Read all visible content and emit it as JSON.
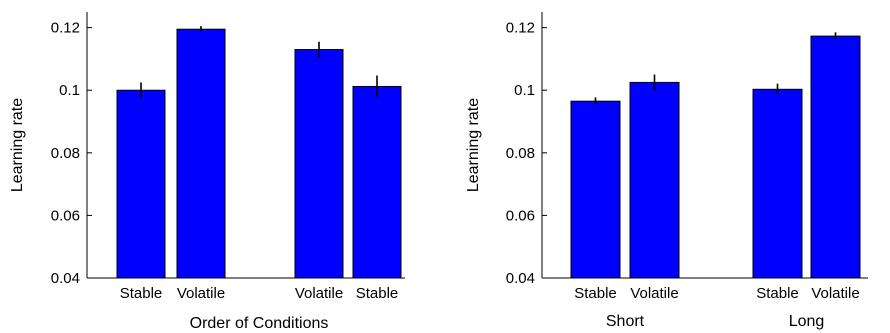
{
  "chart_data": [
    {
      "type": "bar",
      "ylabel": "Learning rate",
      "xlabel": "Order of Conditions",
      "ylim": [
        0.04,
        0.125
      ],
      "yticks": [
        "0.04",
        "0.06",
        "0.08",
        "0.1",
        "0.12"
      ],
      "group_labels": [],
      "bar_color": "#0000ff",
      "bars": [
        {
          "label": "Stable",
          "value": 0.1,
          "error": 0.0025,
          "group": 0
        },
        {
          "label": "Volatile",
          "value": 0.1195,
          "error": 0.001,
          "group": 0
        },
        {
          "label": "Volatile",
          "value": 0.113,
          "error": 0.0025,
          "group": 1
        },
        {
          "label": "Stable",
          "value": 0.1012,
          "error": 0.0035,
          "group": 1
        }
      ]
    },
    {
      "type": "bar",
      "ylabel": "Learning rate",
      "xlabel": "",
      "ylim": [
        0.04,
        0.125
      ],
      "yticks": [
        "0.04",
        "0.06",
        "0.08",
        "0.1",
        "0.12"
      ],
      "group_labels": [
        "Short",
        "Long"
      ],
      "bar_color": "#0000ff",
      "bars": [
        {
          "label": "Stable",
          "value": 0.0965,
          "error": 0.0012,
          "group": 0
        },
        {
          "label": "Volatile",
          "value": 0.1025,
          "error": 0.0025,
          "group": 0
        },
        {
          "label": "Stable",
          "value": 0.1003,
          "error": 0.0018,
          "group": 1
        },
        {
          "label": "Volatile",
          "value": 0.1173,
          "error": 0.0012,
          "group": 1
        }
      ]
    }
  ]
}
